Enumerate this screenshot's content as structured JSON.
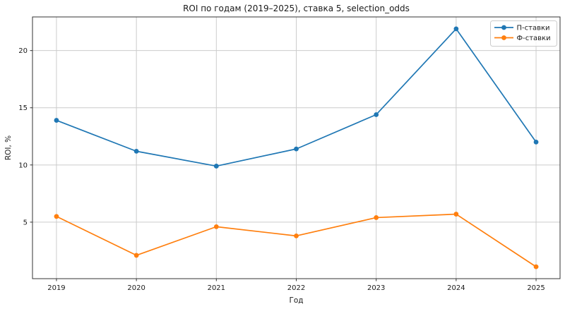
{
  "figure": {
    "background": "#ffffff"
  },
  "chart_data": {
    "type": "line",
    "title": "ROI по годам (2019–2025), ставка 5, selection_odds",
    "xlabel": "Год",
    "ylabel": "ROI, %",
    "categories": [
      2019,
      2020,
      2021,
      2022,
      2023,
      2024,
      2025
    ],
    "series": [
      {
        "name": "П-ставки",
        "color": "#1f77b4",
        "marker": "circle",
        "values": [
          13.9,
          11.2,
          9.9,
          11.4,
          14.4,
          21.9,
          12.0
        ]
      },
      {
        "name": "Ф-ставки",
        "color": "#ff7f0e",
        "marker": "circle",
        "values": [
          5.5,
          2.1,
          4.6,
          3.8,
          5.4,
          5.7,
          1.1
        ]
      }
    ],
    "xlim": [
      2018.7,
      2025.3
    ],
    "ylim": [
      0.06,
      22.94
    ],
    "yticks": [
      5,
      10,
      15,
      20
    ],
    "grid": true,
    "legend": {
      "position": "upper right"
    },
    "colors": {
      "grid": "#cccccc",
      "spine": "#333333",
      "tick": "#333333",
      "legend_border": "#cccccc",
      "legend_bg": "#ffffff"
    }
  }
}
